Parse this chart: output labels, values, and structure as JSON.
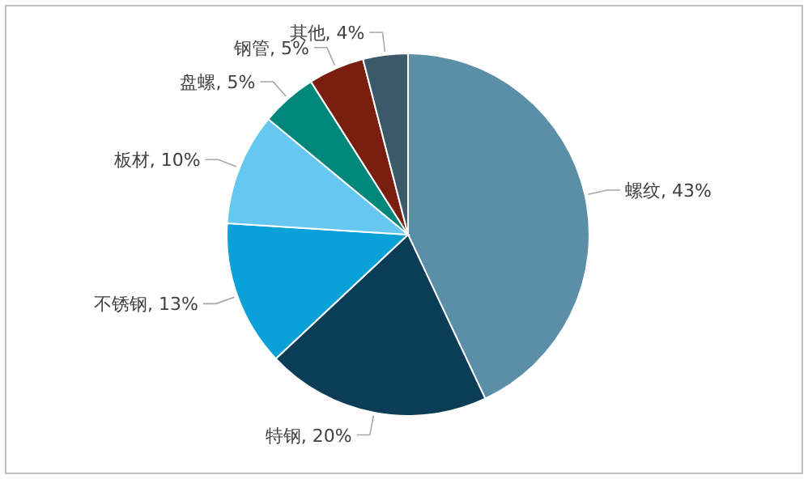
{
  "chart_data": {
    "type": "pie",
    "categories": [
      "螺纹",
      "特钢",
      "不锈钢",
      "板材",
      "盘螺",
      "钢管",
      "其他"
    ],
    "values": [
      43,
      20,
      13,
      10,
      5,
      5,
      4
    ],
    "value_labels": [
      "43%",
      "20%",
      "13%",
      "10%",
      "5%",
      "5%",
      "4%"
    ],
    "colors": [
      "#5b8fa8",
      "#0b3d57",
      "#0aa0d8",
      "#66c8f0",
      "#00877a",
      "#7a1f10",
      "#3a5a6a"
    ]
  }
}
